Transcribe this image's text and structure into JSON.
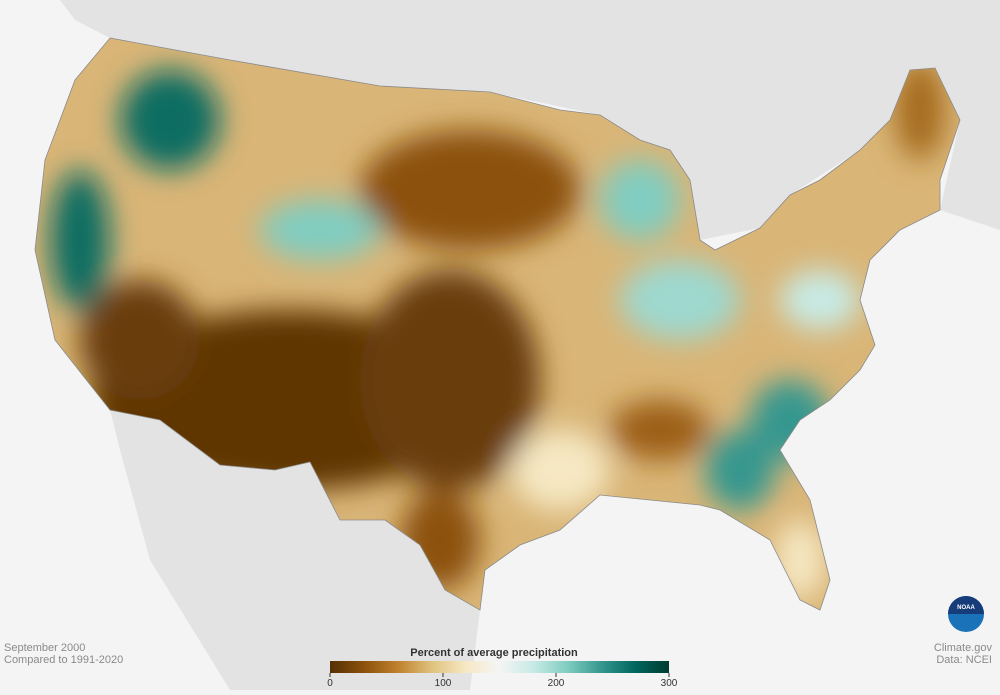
{
  "caption": {
    "period": "September 2000",
    "baseline": "Compared to 1991-2020"
  },
  "legend": {
    "title": "Percent of average precipitation",
    "range": [
      0,
      300
    ],
    "ticks": [
      0,
      100,
      200,
      300
    ],
    "colors": [
      "#543005",
      "#8c510a",
      "#bf812d",
      "#dfc27d",
      "#f6e8c3",
      "#f5f5f5",
      "#c7eae5",
      "#80cdc1",
      "#35978f",
      "#01665e",
      "#003c30"
    ]
  },
  "credits": {
    "site": "Climate.gov",
    "source": "Data: NCEI"
  },
  "logo": "NOAA"
}
